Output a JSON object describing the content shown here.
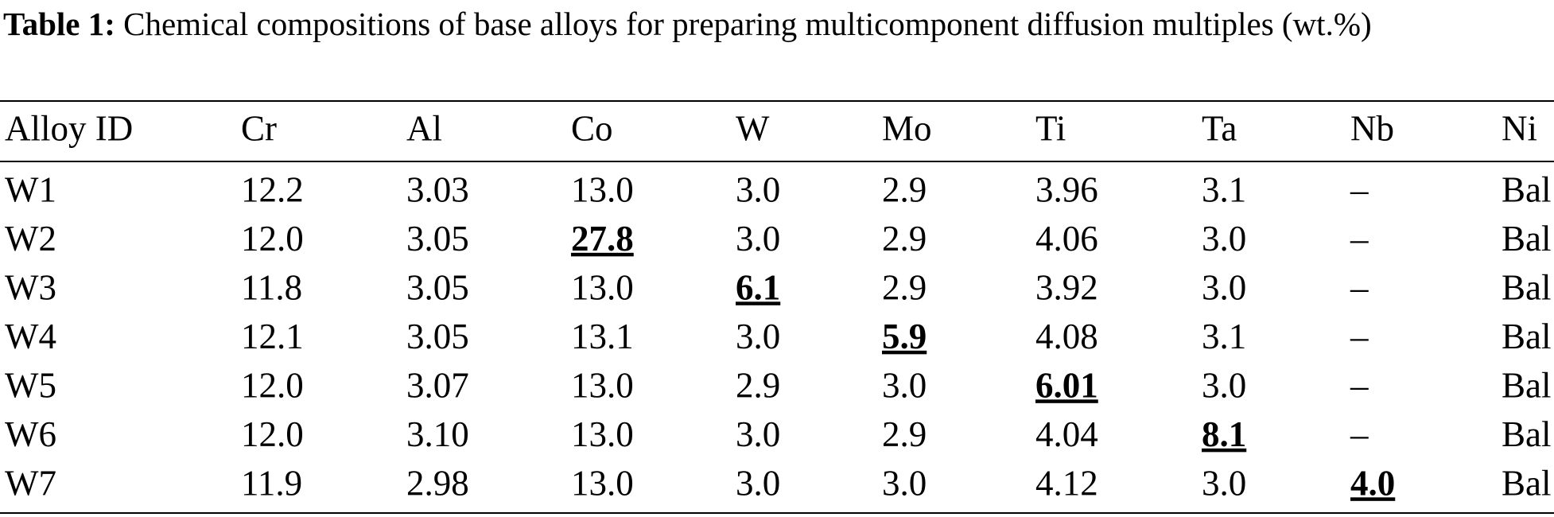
{
  "caption": {
    "label": "Table 1:",
    "text": "Chemical compositions of base alloys for preparing multicomponent diffusion multiples (wt.%)"
  },
  "table": {
    "headers": [
      "Alloy ID",
      "Cr",
      "Al",
      "Co",
      "W",
      "Mo",
      "Ti",
      "Ta",
      "Nb",
      "Ni"
    ],
    "rows": [
      [
        "W1",
        "12.2",
        "3.03",
        "13.0",
        "3.0",
        "2.9",
        "3.96",
        "3.1",
        "–",
        "Bal"
      ],
      [
        "W2",
        "12.0",
        "3.05",
        {
          "value": "27.8",
          "style": "bold-underline"
        },
        "3.0",
        "2.9",
        "4.06",
        "3.0",
        "–",
        "Bal"
      ],
      [
        "W3",
        "11.8",
        "3.05",
        "13.0",
        {
          "value": "6.1",
          "style": "bold-underline"
        },
        "2.9",
        "3.92",
        "3.0",
        "–",
        "Bal"
      ],
      [
        "W4",
        "12.1",
        "3.05",
        "13.1",
        "3.0",
        {
          "value": "5.9",
          "style": "bold-underline"
        },
        "4.08",
        "3.1",
        "–",
        "Bal"
      ],
      [
        "W5",
        "12.0",
        "3.07",
        "13.0",
        "2.9",
        "3.0",
        {
          "value": "6.01",
          "style": "bold-underline"
        },
        "3.0",
        "–",
        "Bal"
      ],
      [
        "W6",
        "12.0",
        "3.10",
        "13.0",
        "3.0",
        "2.9",
        "4.04",
        {
          "value": "8.1",
          "style": "bold-underline"
        },
        "–",
        "Bal"
      ],
      [
        "W7",
        "11.9",
        "2.98",
        "13.0",
        "3.0",
        "3.0",
        "4.12",
        "3.0",
        {
          "value": "4.0",
          "style": "bold-underline"
        },
        "Bal"
      ]
    ]
  }
}
